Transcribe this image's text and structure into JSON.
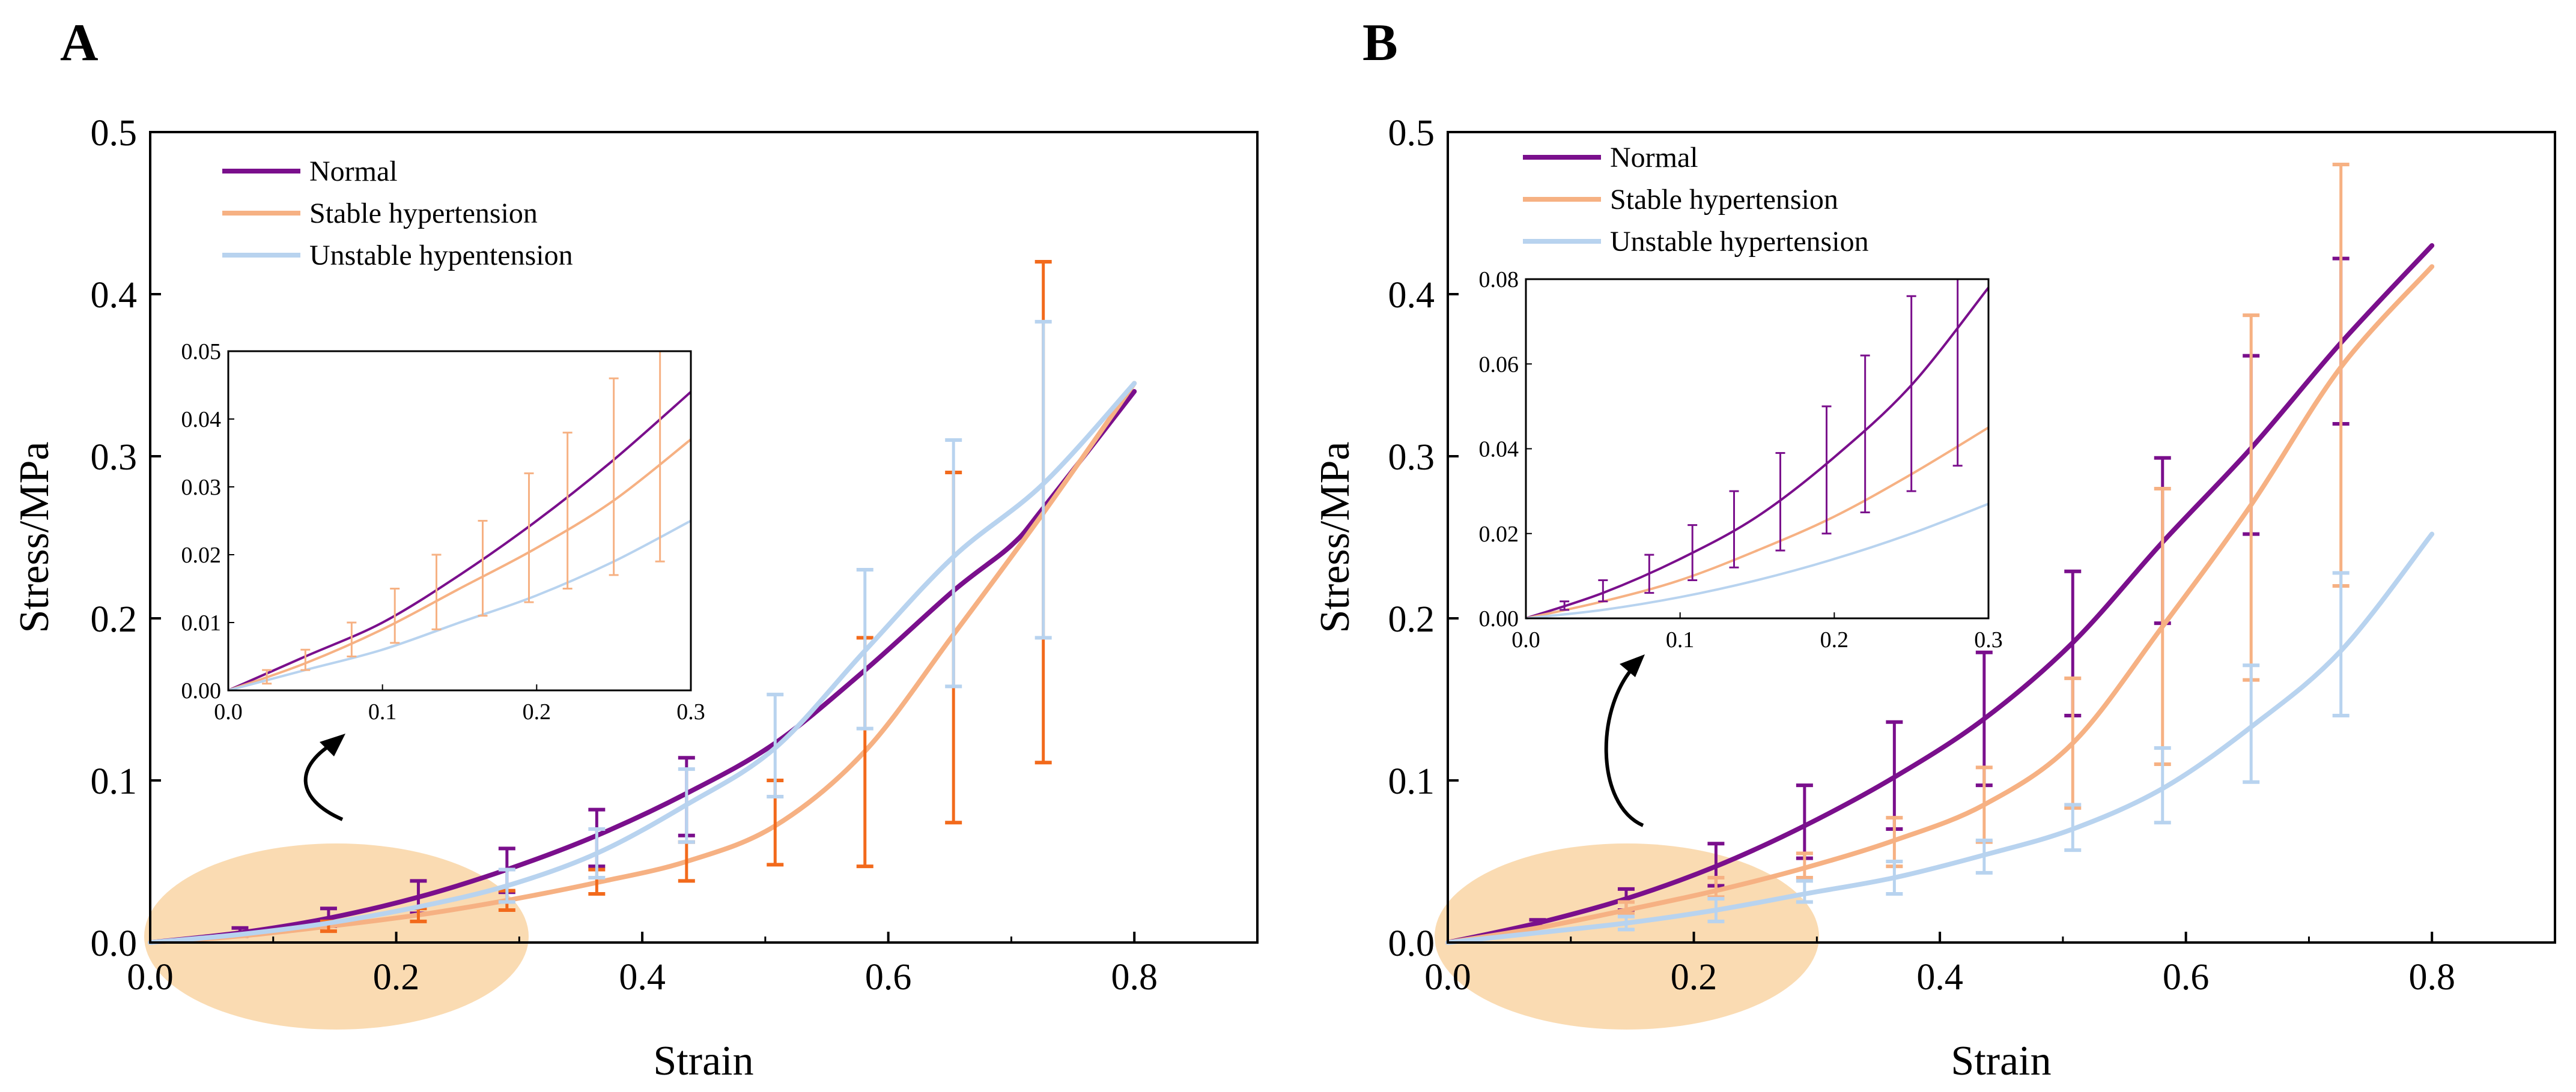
{
  "figure": {
    "panel_a_label": "A",
    "panel_b_label": "B"
  },
  "colors": {
    "normal": "#7a0f8c",
    "stable": "#f6b183",
    "unstable": "#b8d3ef",
    "stable_error_a": "#f26a1c",
    "highlight": "#fad9ae"
  },
  "chart_data": [
    {
      "type": "line",
      "panel": "A",
      "xlabel": "Strain",
      "ylabel": "Stress/MPa",
      "xlim": [
        0,
        0.9
      ],
      "ylim": [
        0,
        0.5
      ],
      "xticks": [
        "0.0",
        "0.2",
        "0.4",
        "0.6",
        "0.8"
      ],
      "yticks": [
        "0.0",
        "0.1",
        "0.2",
        "0.3",
        "0.4",
        "0.5"
      ],
      "legend": [
        "Normal",
        "Stable hypertension",
        "Unstable hypentension"
      ],
      "legend_position": "top-left",
      "series": [
        {
          "name": "Normal",
          "key": "normal",
          "x": [
            0.0,
            0.073,
            0.145,
            0.218,
            0.29,
            0.363,
            0.436,
            0.508,
            0.581,
            0.653,
            0.7,
            0.726,
            0.8
          ],
          "y": [
            0.0,
            0.006,
            0.015,
            0.028,
            0.045,
            0.066,
            0.092,
            0.123,
            0.168,
            0.217,
            0.245,
            0.268,
            0.34
          ],
          "err_x": [
            0.073,
            0.145,
            0.218,
            0.29,
            0.363,
            0.436
          ],
          "err_low": [
            0.004,
            0.01,
            0.018,
            0.031,
            0.047,
            0.066
          ],
          "err_high": [
            0.009,
            0.021,
            0.038,
            0.058,
            0.082,
            0.114
          ]
        },
        {
          "name": "Stable hypertension",
          "key": "stable",
          "x": [
            0.0,
            0.073,
            0.145,
            0.218,
            0.29,
            0.363,
            0.436,
            0.508,
            0.581,
            0.653,
            0.726,
            0.8
          ],
          "y": [
            0.0,
            0.004,
            0.01,
            0.017,
            0.026,
            0.037,
            0.05,
            0.072,
            0.118,
            0.19,
            0.265,
            0.345
          ],
          "err_x": [
            0.145,
            0.218,
            0.29,
            0.363,
            0.436,
            0.508,
            0.581,
            0.653,
            0.726
          ],
          "err_low": [
            0.007,
            0.013,
            0.02,
            0.03,
            0.038,
            0.048,
            0.047,
            0.074,
            0.111
          ],
          "err_high": [
            0.013,
            0.021,
            0.032,
            0.045,
            0.062,
            0.1,
            0.188,
            0.29,
            0.42
          ]
        },
        {
          "name": "Unstable hypentension",
          "key": "unstable",
          "x": [
            0.0,
            0.073,
            0.145,
            0.218,
            0.29,
            0.363,
            0.436,
            0.508,
            0.581,
            0.653,
            0.726,
            0.8
          ],
          "y": [
            0.0,
            0.005,
            0.012,
            0.022,
            0.035,
            0.055,
            0.085,
            0.12,
            0.18,
            0.238,
            0.283,
            0.345
          ],
          "err_x": [
            0.29,
            0.363,
            0.436,
            0.508,
            0.581,
            0.653,
            0.726
          ],
          "err_low": [
            0.025,
            0.04,
            0.062,
            0.09,
            0.132,
            0.158,
            0.188
          ],
          "err_high": [
            0.045,
            0.07,
            0.107,
            0.153,
            0.23,
            0.31,
            0.383
          ]
        }
      ],
      "inset": {
        "xlim": [
          0,
          0.3
        ],
        "ylim": [
          0,
          0.05
        ],
        "xticks": [
          "0.0",
          "0.1",
          "0.2",
          "0.3"
        ],
        "yticks": [
          "0.00",
          "0.01",
          "0.02",
          "0.03",
          "0.04",
          "0.05"
        ],
        "series": [
          {
            "key": "normal",
            "x": [
              0.0,
              0.05,
              0.1,
              0.15,
              0.2,
              0.25,
              0.3
            ],
            "y": [
              0.0,
              0.005,
              0.01,
              0.017,
              0.025,
              0.034,
              0.044
            ]
          },
          {
            "key": "stable",
            "x": [
              0.0,
              0.05,
              0.1,
              0.15,
              0.2,
              0.25,
              0.3
            ],
            "y": [
              0.0,
              0.004,
              0.009,
              0.015,
              0.021,
              0.028,
              0.037
            ]
          },
          {
            "key": "unstable",
            "x": [
              0.0,
              0.05,
              0.1,
              0.15,
              0.2,
              0.25,
              0.3
            ],
            "y": [
              0.0,
              0.003,
              0.006,
              0.01,
              0.014,
              0.019,
              0.025
            ]
          }
        ],
        "error_bars": {
          "key": "stable",
          "x": [
            0.025,
            0.05,
            0.08,
            0.108,
            0.135,
            0.165,
            0.195,
            0.22,
            0.25,
            0.28
          ],
          "low": [
            0.001,
            0.003,
            0.005,
            0.007,
            0.009,
            0.011,
            0.013,
            0.015,
            0.017,
            0.019
          ],
          "high": [
            0.003,
            0.006,
            0.01,
            0.015,
            0.02,
            0.025,
            0.032,
            0.038,
            0.046,
            0.052
          ]
        }
      }
    },
    {
      "type": "line",
      "panel": "B",
      "xlabel": "Strain",
      "ylabel": "Stress/MPa",
      "xlim": [
        0,
        0.9
      ],
      "ylim": [
        0,
        0.5
      ],
      "xticks": [
        "0.0",
        "0.2",
        "0.4",
        "0.6",
        "0.8"
      ],
      "yticks": [
        "0.0",
        "0.1",
        "0.2",
        "0.3",
        "0.4",
        "0.5"
      ],
      "legend": [
        "Normal",
        "Stable hypertension",
        "Unstable hypertension"
      ],
      "legend_position": "top-left",
      "series": [
        {
          "name": "Normal",
          "key": "normal",
          "x": [
            0.0,
            0.073,
            0.145,
            0.218,
            0.29,
            0.363,
            0.436,
            0.508,
            0.581,
            0.653,
            0.726,
            0.8
          ],
          "y": [
            0.0,
            0.012,
            0.027,
            0.047,
            0.072,
            0.102,
            0.138,
            0.185,
            0.247,
            0.305,
            0.37,
            0.43
          ],
          "err_x": [
            0.073,
            0.145,
            0.218,
            0.29,
            0.363,
            0.436,
            0.508,
            0.581,
            0.653,
            0.726
          ],
          "err_low": [
            0.01,
            0.02,
            0.035,
            0.052,
            0.07,
            0.097,
            0.14,
            0.197,
            0.252,
            0.32
          ],
          "err_high": [
            0.014,
            0.033,
            0.061,
            0.097,
            0.136,
            0.179,
            0.229,
            0.299,
            0.362,
            0.422
          ]
        },
        {
          "name": "Stable hypertension",
          "key": "stable",
          "x": [
            0.0,
            0.073,
            0.145,
            0.218,
            0.29,
            0.363,
            0.436,
            0.508,
            0.581,
            0.653,
            0.726,
            0.8
          ],
          "y": [
            0.0,
            0.009,
            0.02,
            0.032,
            0.046,
            0.063,
            0.085,
            0.123,
            0.195,
            0.27,
            0.355,
            0.417
          ],
          "err_x": [
            0.145,
            0.218,
            0.29,
            0.363,
            0.436,
            0.508,
            0.581,
            0.653,
            0.726
          ],
          "err_low": [
            0.018,
            0.028,
            0.04,
            0.047,
            0.062,
            0.083,
            0.11,
            0.162,
            0.22
          ],
          "err_high": [
            0.025,
            0.04,
            0.055,
            0.077,
            0.108,
            0.163,
            0.28,
            0.387,
            0.48
          ]
        },
        {
          "name": "Unstable hypertension",
          "key": "unstable",
          "x": [
            0.0,
            0.073,
            0.145,
            0.218,
            0.29,
            0.363,
            0.436,
            0.508,
            0.581,
            0.653,
            0.726,
            0.8
          ],
          "y": [
            0.0,
            0.006,
            0.012,
            0.02,
            0.03,
            0.04,
            0.054,
            0.07,
            0.095,
            0.133,
            0.18,
            0.252
          ],
          "err_x": [
            0.145,
            0.218,
            0.29,
            0.363,
            0.436,
            0.508,
            0.581,
            0.653,
            0.726
          ],
          "err_low": [
            0.008,
            0.013,
            0.025,
            0.03,
            0.043,
            0.057,
            0.074,
            0.099,
            0.14
          ],
          "err_high": [
            0.016,
            0.027,
            0.038,
            0.05,
            0.063,
            0.085,
            0.12,
            0.171,
            0.228
          ]
        }
      ],
      "inset": {
        "xlim": [
          0,
          0.3
        ],
        "ylim": [
          0,
          0.08
        ],
        "xticks": [
          "0.0",
          "0.1",
          "0.2",
          "0.3"
        ],
        "yticks": [
          "0.00",
          "0.02",
          "0.04",
          "0.06",
          "0.08"
        ],
        "series": [
          {
            "key": "normal",
            "x": [
              0.0,
              0.05,
              0.1,
              0.15,
              0.2,
              0.25,
              0.3
            ],
            "y": [
              0.0,
              0.006,
              0.014,
              0.024,
              0.038,
              0.055,
              0.078
            ]
          },
          {
            "key": "stable",
            "x": [
              0.0,
              0.05,
              0.1,
              0.15,
              0.2,
              0.25,
              0.3
            ],
            "y": [
              0.0,
              0.004,
              0.009,
              0.016,
              0.024,
              0.034,
              0.045
            ]
          },
          {
            "key": "unstable",
            "x": [
              0.0,
              0.05,
              0.1,
              0.15,
              0.2,
              0.25,
              0.3
            ],
            "y": [
              0.0,
              0.002,
              0.005,
              0.009,
              0.014,
              0.02,
              0.027
            ]
          }
        ],
        "error_bars": {
          "key": "normal",
          "x": [
            0.025,
            0.05,
            0.08,
            0.108,
            0.135,
            0.165,
            0.195,
            0.22,
            0.25,
            0.28
          ],
          "low": [
            0.002,
            0.004,
            0.006,
            0.009,
            0.012,
            0.016,
            0.02,
            0.025,
            0.03,
            0.036
          ],
          "high": [
            0.004,
            0.009,
            0.015,
            0.022,
            0.03,
            0.039,
            0.05,
            0.062,
            0.076,
            0.09
          ]
        }
      }
    }
  ]
}
